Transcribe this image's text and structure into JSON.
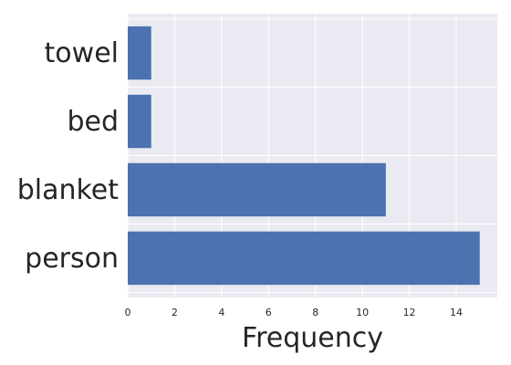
{
  "chart_data": {
    "type": "bar",
    "orientation": "horizontal",
    "categories": [
      "person",
      "blanket",
      "bed",
      "towel"
    ],
    "values": [
      15,
      11,
      1,
      1
    ],
    "title": "",
    "xlabel": "Frequency",
    "ylabel": "",
    "xlim": [
      0,
      15.75
    ],
    "xticks": [
      0,
      2,
      4,
      6,
      8,
      10,
      12,
      14
    ],
    "grid": true,
    "bar_color": "#4c72b0",
    "background_color": "#eaeaf2"
  }
}
